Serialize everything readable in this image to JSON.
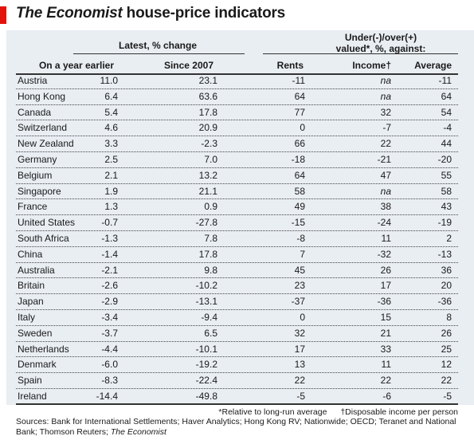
{
  "title": {
    "publication": "The Economist",
    "rest": " house-price indicators"
  },
  "group_headers": {
    "latest": "Latest, % change",
    "valued_line1": "Under(-)/over(+)",
    "valued_line2": "valued*, %, against:"
  },
  "columns": {
    "year_earlier": "On a year earlier",
    "since_2007": "Since 2007",
    "rents": "Rents",
    "income": "Income†",
    "average": "Average"
  },
  "chart_data": {
    "type": "table",
    "columns": [
      "On a year earlier",
      "Since 2007",
      "Rents",
      "Income†",
      "Average"
    ],
    "rows": [
      {
        "country": "Austria",
        "year_earlier": "11.0",
        "since_2007": "23.1",
        "rents": "-11",
        "income": "na",
        "average": "-11"
      },
      {
        "country": "Hong Kong",
        "year_earlier": "6.4",
        "since_2007": "63.6",
        "rents": "64",
        "income": "na",
        "average": "64"
      },
      {
        "country": "Canada",
        "year_earlier": "5.4",
        "since_2007": "17.8",
        "rents": "77",
        "income": "32",
        "average": "54"
      },
      {
        "country": "Switzerland",
        "year_earlier": "4.6",
        "since_2007": "20.9",
        "rents": "0",
        "income": "-7",
        "average": "-4"
      },
      {
        "country": "New Zealand",
        "year_earlier": "3.3",
        "since_2007": "-2.3",
        "rents": "66",
        "income": "22",
        "average": "44"
      },
      {
        "country": "Germany",
        "year_earlier": "2.5",
        "since_2007": "7.0",
        "rents": "-18",
        "income": "-21",
        "average": "-20"
      },
      {
        "country": "Belgium",
        "year_earlier": "2.1",
        "since_2007": "13.2",
        "rents": "64",
        "income": "47",
        "average": "55"
      },
      {
        "country": "Singapore",
        "year_earlier": "1.9",
        "since_2007": "21.1",
        "rents": "58",
        "income": "na",
        "average": "58"
      },
      {
        "country": "France",
        "year_earlier": "1.3",
        "since_2007": "0.9",
        "rents": "49",
        "income": "38",
        "average": "43"
      },
      {
        "country": "United States",
        "year_earlier": "-0.7",
        "since_2007": "-27.8",
        "rents": "-15",
        "income": "-24",
        "average": "-19"
      },
      {
        "country": "South Africa",
        "year_earlier": "-1.3",
        "since_2007": "7.8",
        "rents": "-8",
        "income": "11",
        "average": "2"
      },
      {
        "country": "China",
        "year_earlier": "-1.4",
        "since_2007": "17.8",
        "rents": "7",
        "income": "-32",
        "average": "-13"
      },
      {
        "country": "Australia",
        "year_earlier": "-2.1",
        "since_2007": "9.8",
        "rents": "45",
        "income": "26",
        "average": "36"
      },
      {
        "country": "Britain",
        "year_earlier": "-2.6",
        "since_2007": "-10.2",
        "rents": "23",
        "income": "17",
        "average": "20"
      },
      {
        "country": "Japan",
        "year_earlier": "-2.9",
        "since_2007": "-13.1",
        "rents": "-37",
        "income": "-36",
        "average": "-36"
      },
      {
        "country": "Italy",
        "year_earlier": "-3.4",
        "since_2007": "-9.4",
        "rents": "0",
        "income": "15",
        "average": "8"
      },
      {
        "country": "Sweden",
        "year_earlier": "-3.7",
        "since_2007": "6.5",
        "rents": "32",
        "income": "21",
        "average": "26"
      },
      {
        "country": "Netherlands",
        "year_earlier": "-4.4",
        "since_2007": "-10.1",
        "rents": "17",
        "income": "33",
        "average": "25"
      },
      {
        "country": "Denmark",
        "year_earlier": "-6.0",
        "since_2007": "-19.2",
        "rents": "13",
        "income": "11",
        "average": "12"
      },
      {
        "country": "Spain",
        "year_earlier": "-8.3",
        "since_2007": "-22.4",
        "rents": "22",
        "income": "22",
        "average": "22"
      },
      {
        "country": "Ireland",
        "year_earlier": "-14.4",
        "since_2007": "-49.8",
        "rents": "-5",
        "income": "-6",
        "average": "-5"
      }
    ]
  },
  "footnotes": {
    "relative": "*Relative to long-run average",
    "disposable": "†Disposable income per person"
  },
  "source": {
    "text": "Sources: Bank for International Settlements; Haver Analytics; Hong Kong RV; Nationwide; OECD; Teranet and National Bank; Thomson Reuters; ",
    "publication": "The Economist"
  },
  "colors": {
    "accent": "#e3120b",
    "panel": "#e9eef3"
  }
}
